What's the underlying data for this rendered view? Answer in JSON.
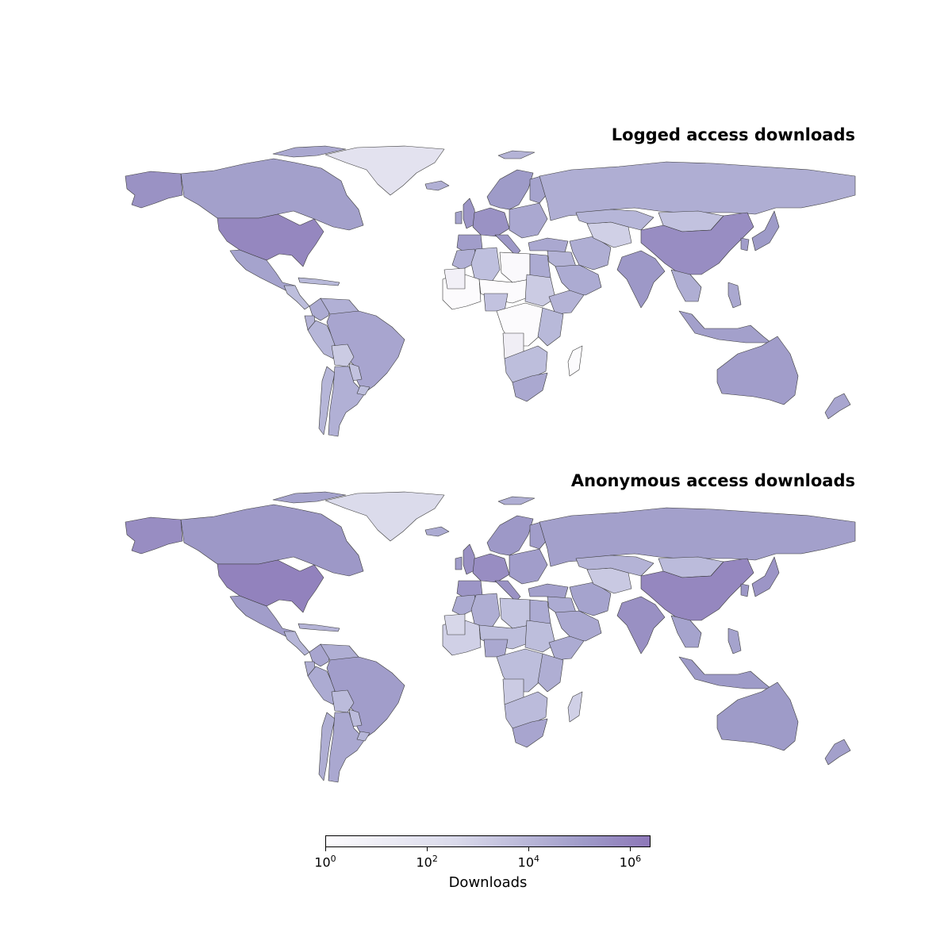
{
  "panels": [
    {
      "title": "Logged access downloads",
      "regions": [
        {
          "name": "Alaska",
          "level": 5.4
        },
        {
          "name": "Canada",
          "level": 4.9
        },
        {
          "name": "Greenland",
          "level": 2.0
        },
        {
          "name": "United States",
          "level": 5.8
        },
        {
          "name": "Mexico",
          "level": 4.8
        },
        {
          "name": "Central America",
          "level": 3.8
        },
        {
          "name": "Caribbean",
          "level": 4.0
        },
        {
          "name": "Colombia",
          "level": 4.5
        },
        {
          "name": "Venezuela",
          "level": 4.3
        },
        {
          "name": "Ecuador",
          "level": 4.2
        },
        {
          "name": "Peru",
          "level": 4.1
        },
        {
          "name": "Brazil",
          "level": 4.7
        },
        {
          "name": "Bolivia",
          "level": 3.2
        },
        {
          "name": "Paraguay",
          "level": 3.6
        },
        {
          "name": "Chile",
          "level": 4.1
        },
        {
          "name": "Argentina",
          "level": 4.3
        },
        {
          "name": "Uruguay",
          "level": 3.8
        },
        {
          "name": "Iceland",
          "level": 4.3
        },
        {
          "name": "United Kingdom",
          "level": 5.3
        },
        {
          "name": "Ireland",
          "level": 4.8
        },
        {
          "name": "Scandinavia",
          "level": 5.1
        },
        {
          "name": "Finland",
          "level": 4.8
        },
        {
          "name": "Western Europe",
          "level": 5.4
        },
        {
          "name": "Iberia",
          "level": 5.0
        },
        {
          "name": "Italy",
          "level": 5.2
        },
        {
          "name": "Eastern Europe",
          "level": 4.6
        },
        {
          "name": "Russia",
          "level": 4.4
        },
        {
          "name": "Turkey",
          "level": 4.6
        },
        {
          "name": "Middle East",
          "level": 4.2
        },
        {
          "name": "Arabian Peninsula",
          "level": 4.5
        },
        {
          "name": "Iran",
          "level": 4.4
        },
        {
          "name": "Central Asia",
          "level": 3.0
        },
        {
          "name": "Kazakhstan",
          "level": 4.1
        },
        {
          "name": "Mongolia",
          "level": 3.6
        },
        {
          "name": "China",
          "level": 5.6
        },
        {
          "name": "India",
          "level": 5.2
        },
        {
          "name": "Southeast Asia",
          "level": 4.4
        },
        {
          "name": "Japan",
          "level": 5.1
        },
        {
          "name": "Korea",
          "level": 5.0
        },
        {
          "name": "Indonesia",
          "level": 4.9
        },
        {
          "name": "Philippines",
          "level": 4.6
        },
        {
          "name": "Australia",
          "level": 5.0
        },
        {
          "name": "New Zealand",
          "level": 4.7
        },
        {
          "name": "Morocco",
          "level": 4.3
        },
        {
          "name": "Algeria",
          "level": 3.7
        },
        {
          "name": "Libya",
          "level": 0.2
        },
        {
          "name": "Egypt",
          "level": 4.5
        },
        {
          "name": "West Africa",
          "level": 0.0
        },
        {
          "name": "Mauritania",
          "level": 1.0
        },
        {
          "name": "Sahel",
          "level": 0.0
        },
        {
          "name": "Nigeria",
          "level": 3.6
        },
        {
          "name": "Sudan",
          "level": 3.2
        },
        {
          "name": "Ethiopia",
          "level": 4.2
        },
        {
          "name": "Central Africa",
          "level": 0.0
        },
        {
          "name": "East Africa",
          "level": 4.0
        },
        {
          "name": "Angola",
          "level": 1.2
        },
        {
          "name": "Southern Africa",
          "level": 3.8
        },
        {
          "name": "South Africa",
          "level": 4.6
        },
        {
          "name": "Madagascar",
          "level": 0.0
        },
        {
          "name": "Svalbard",
          "level": 4.2
        },
        {
          "name": "Arctic Islands",
          "level": 4.6
        }
      ]
    },
    {
      "title": "Anonymous access downloads",
      "regions": [
        {
          "name": "Alaska",
          "level": 5.6
        },
        {
          "name": "Canada",
          "level": 5.2
        },
        {
          "name": "Greenland",
          "level": 2.5
        },
        {
          "name": "United States",
          "level": 6.0
        },
        {
          "name": "Mexico",
          "level": 5.0
        },
        {
          "name": "Central America",
          "level": 4.1
        },
        {
          "name": "Caribbean",
          "level": 4.2
        },
        {
          "name": "Colombia",
          "level": 4.7
        },
        {
          "name": "Venezuela",
          "level": 4.4
        },
        {
          "name": "Ecuador",
          "level": 4.4
        },
        {
          "name": "Peru",
          "level": 4.5
        },
        {
          "name": "Brazil",
          "level": 5.0
        },
        {
          "name": "Bolivia",
          "level": 3.9
        },
        {
          "name": "Paraguay",
          "level": 3.9
        },
        {
          "name": "Chile",
          "level": 4.4
        },
        {
          "name": "Argentina",
          "level": 4.6
        },
        {
          "name": "Uruguay",
          "level": 4.1
        },
        {
          "name": "Iceland",
          "level": 4.5
        },
        {
          "name": "United Kingdom",
          "level": 5.5
        },
        {
          "name": "Ireland",
          "level": 5.0
        },
        {
          "name": "Scandinavia",
          "level": 5.2
        },
        {
          "name": "Finland",
          "level": 5.0
        },
        {
          "name": "Western Europe",
          "level": 5.6
        },
        {
          "name": "Iberia",
          "level": 5.3
        },
        {
          "name": "Italy",
          "level": 5.4
        },
        {
          "name": "Eastern Europe",
          "level": 5.0
        },
        {
          "name": "Russia",
          "level": 4.9
        },
        {
          "name": "Turkey",
          "level": 4.9
        },
        {
          "name": "Middle East",
          "level": 4.5
        },
        {
          "name": "Arabian Peninsula",
          "level": 4.6
        },
        {
          "name": "Iran",
          "level": 4.8
        },
        {
          "name": "Central Asia",
          "level": 3.3
        },
        {
          "name": "Kazakhstan",
          "level": 4.2
        },
        {
          "name": "Mongolia",
          "level": 3.9
        },
        {
          "name": "China",
          "level": 5.8
        },
        {
          "name": "India",
          "level": 5.5
        },
        {
          "name": "Southeast Asia",
          "level": 4.8
        },
        {
          "name": "Japan",
          "level": 5.3
        },
        {
          "name": "Korea",
          "level": 5.2
        },
        {
          "name": "Indonesia",
          "level": 5.1
        },
        {
          "name": "Philippines",
          "level": 4.8
        },
        {
          "name": "Australia",
          "level": 5.1
        },
        {
          "name": "New Zealand",
          "level": 4.9
        },
        {
          "name": "Morocco",
          "level": 4.5
        },
        {
          "name": "Algeria",
          "level": 4.4
        },
        {
          "name": "Libya",
          "level": 3.5
        },
        {
          "name": "Egypt",
          "level": 4.5
        },
        {
          "name": "West Africa",
          "level": 3.0
        },
        {
          "name": "Mauritania",
          "level": 2.7
        },
        {
          "name": "Sahel",
          "level": 3.8
        },
        {
          "name": "Nigeria",
          "level": 4.6
        },
        {
          "name": "Sudan",
          "level": 3.8
        },
        {
          "name": "Ethiopia",
          "level": 4.5
        },
        {
          "name": "Central Africa",
          "level": 3.8
        },
        {
          "name": "East Africa",
          "level": 4.4
        },
        {
          "name": "Angola",
          "level": 3.2
        },
        {
          "name": "Southern Africa",
          "level": 3.9
        },
        {
          "name": "South Africa",
          "level": 4.7
        },
        {
          "name": "Madagascar",
          "level": 3.0
        },
        {
          "name": "Svalbard",
          "level": 4.4
        },
        {
          "name": "Arctic Islands",
          "level": 4.8
        }
      ]
    }
  ],
  "colorbar": {
    "label": "Downloads",
    "scale": "log",
    "range": [
      1,
      2500000
    ],
    "ticks": [
      {
        "base": "10",
        "exp": "0"
      },
      {
        "base": "10",
        "exp": "2"
      },
      {
        "base": "10",
        "exp": "4"
      },
      {
        "base": "10",
        "exp": "6"
      }
    ],
    "colors": [
      "#fcfbfd",
      "#efedf5",
      "#dadaeb",
      "#bcbddc",
      "#9e9ac8",
      "#8d77b8"
    ]
  }
}
